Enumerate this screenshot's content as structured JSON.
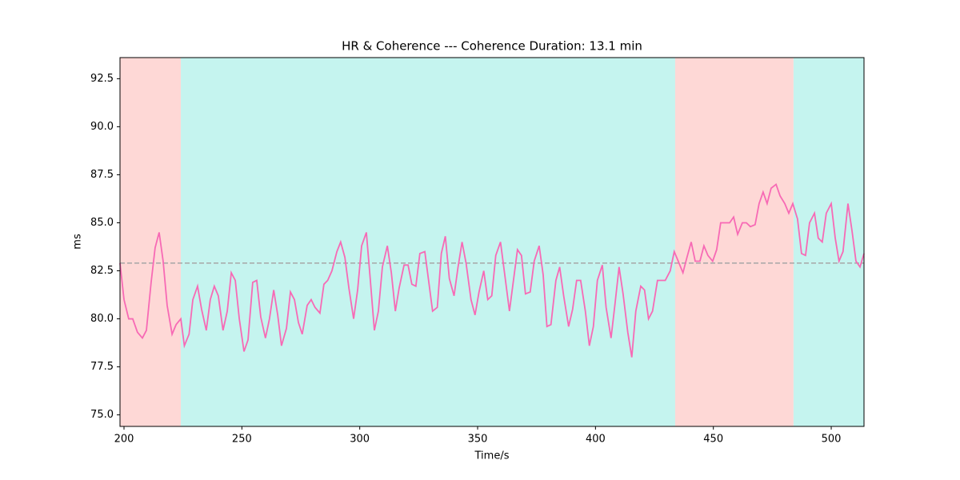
{
  "chart_data": {
    "type": "line",
    "title": "HR & Coherence --- Coherence Duration: 13.1 min",
    "xlabel": "Time/s",
    "ylabel": "ms",
    "xlim": [
      198.3,
      513.9
    ],
    "ylim": [
      74.4,
      93.6
    ],
    "xticks": [
      200,
      250,
      300,
      350,
      400,
      450,
      500
    ],
    "yticks": [
      {
        "value": 75,
        "label": "75.0"
      },
      {
        "value": 77.5,
        "label": "77.5"
      },
      {
        "value": 80,
        "label": "80.0"
      },
      {
        "value": 82.5,
        "label": "82.5"
      },
      {
        "value": 85,
        "label": "85.0"
      },
      {
        "value": 87.5,
        "label": "87.5"
      },
      {
        "value": 90,
        "label": "90.0"
      },
      {
        "value": 92.5,
        "label": "92.5"
      }
    ],
    "regions": [
      {
        "start": 198.3,
        "end": 224.1,
        "color": "#fed8d6"
      },
      {
        "start": 224.1,
        "end": 433.8,
        "color": "#c5f4ef"
      },
      {
        "start": 433.8,
        "end": 484.0,
        "color": "#fed8d6"
      },
      {
        "start": 484.0,
        "end": 513.9,
        "color": "#c5f4ef"
      }
    ],
    "hline": {
      "value": 82.9,
      "color": "#a6a6a6"
    },
    "series": [
      {
        "color": "#f76ab5",
        "x": [
          198.3,
          200,
          202,
          203.7,
          205.7,
          207.8,
          209.5,
          211.5,
          213.2,
          214.9,
          216.6,
          218.3,
          220.4,
          222.1,
          224.1,
          225.6,
          227.6,
          229.2,
          231.2,
          232.9,
          234.9,
          236.6,
          238.3,
          240,
          242,
          243.8,
          245.5,
          247.2,
          248.9,
          250.9,
          252.6,
          254.6,
          256.3,
          258,
          260,
          261.7,
          263.5,
          265.2,
          266.8,
          268.9,
          270.6,
          272.3,
          274,
          275.6,
          277.7,
          279.4,
          281,
          283.1,
          284.8,
          286.4,
          288.2,
          290.3,
          291.9,
          293.7,
          295.4,
          297.4,
          299.1,
          300.8,
          302.8,
          304.5,
          306.2,
          307.9,
          309.6,
          311.7,
          313.4,
          315.1,
          316.7,
          318.8,
          320.5,
          322.1,
          323.8,
          325.5,
          327.6,
          329.2,
          330.9,
          332.9,
          334.6,
          336.3,
          338,
          340,
          341.7,
          343.4,
          345.1,
          347.2,
          348.9,
          350.6,
          352.6,
          354.3,
          356,
          357.7,
          359.7,
          361.4,
          363.5,
          365.2,
          366.9,
          368.6,
          370.3,
          372.3,
          374,
          376.1,
          377.8,
          379.4,
          381.1,
          383.2,
          384.8,
          386.5,
          388.6,
          390.3,
          392,
          393.7,
          395.7,
          397.4,
          399.1,
          400.8,
          402.9,
          404.5,
          406.6,
          408.3,
          410,
          411.7,
          413.7,
          415.4,
          417.1,
          419.2,
          420.8,
          422.5,
          424.2,
          426.3,
          428,
          429.6,
          431.7,
          433.4,
          435.1,
          437.1,
          438.8,
          440.6,
          442.3,
          444.3,
          446,
          447.7,
          449.7,
          451.4,
          453.1,
          455.2,
          456.9,
          458.6,
          460.3,
          462.3,
          464,
          465.7,
          467.7,
          469.4,
          471.1,
          472.8,
          474.5,
          476.6,
          478.3,
          480.3,
          482,
          483.7,
          485.7,
          487.4,
          489.1,
          490.8,
          492.9,
          494.5,
          496.2,
          497.9,
          500,
          501.7,
          503.3,
          505,
          507.1,
          508.8,
          510.5,
          512.2,
          513.9
        ],
        "values": [
          82.9,
          81,
          80,
          80,
          79.3,
          79,
          79.4,
          81.9,
          83.7,
          84.5,
          83,
          80.7,
          79.2,
          79.7,
          80,
          78.6,
          79.2,
          81,
          81.7,
          80.5,
          79.4,
          81,
          81.7,
          81.2,
          79.4,
          80.4,
          82.4,
          82,
          80,
          78.3,
          78.9,
          81.9,
          82,
          80.1,
          79,
          80,
          81.5,
          80.2,
          78.6,
          79.5,
          81.4,
          81,
          79.8,
          79.2,
          80.7,
          81,
          80.6,
          80.3,
          81.8,
          82,
          82.5,
          83.5,
          84,
          83.2,
          81.6,
          80,
          81.5,
          83.8,
          84.5,
          82,
          79.4,
          80.4,
          82.7,
          83.8,
          82.4,
          80.4,
          81.6,
          82.8,
          82.8,
          81.8,
          81.7,
          83.4,
          83.5,
          82,
          80.4,
          80.6,
          83.4,
          84.3,
          82.1,
          81.2,
          82.7,
          84,
          82.9,
          81,
          80.2,
          81.4,
          82.5,
          81,
          81.2,
          83.3,
          84,
          82.4,
          80.4,
          82,
          83.6,
          83.3,
          81.3,
          81.4,
          83,
          83.8,
          82.3,
          79.6,
          79.7,
          82,
          82.7,
          81.2,
          79.6,
          80.5,
          82,
          82,
          80.4,
          78.6,
          79.6,
          82,
          82.8,
          80.6,
          79,
          80.8,
          82.7,
          81.3,
          79.3,
          78,
          80.4,
          81.7,
          81.5,
          80,
          80.4,
          82,
          82,
          82,
          82.5,
          83.5,
          83,
          82.4,
          83.2,
          84,
          83,
          83,
          83.8,
          83.3,
          83,
          83.6,
          85,
          85,
          85,
          85.3,
          84.4,
          85,
          85,
          84.8,
          84.9,
          86,
          86.6,
          86,
          86.8,
          87,
          86.4,
          86,
          85.5,
          86,
          85.2,
          83.4,
          83.3,
          85,
          85.5,
          84.2,
          84,
          85.5,
          86,
          84.2,
          83,
          83.5,
          86,
          84.6,
          83,
          82.7,
          83.4
        ]
      }
    ]
  }
}
